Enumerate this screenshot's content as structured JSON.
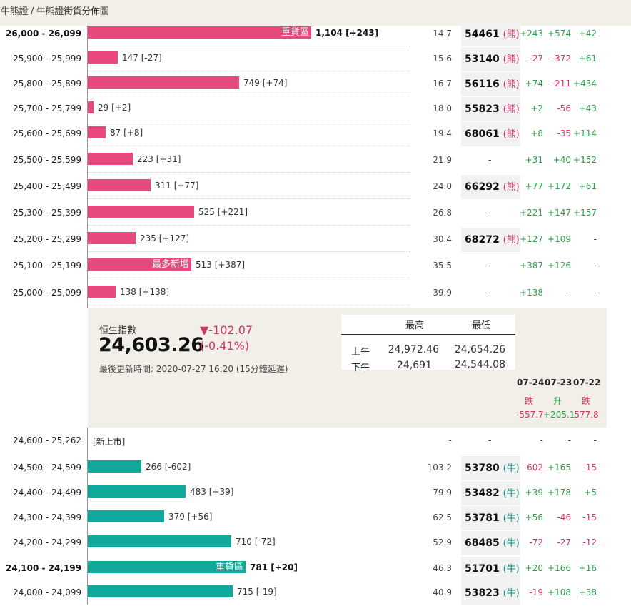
{
  "breadcrumb": "牛熊證 / 牛熊證街貨分佈圖",
  "colors": {
    "bear_bar": "#e94a7d",
    "bull_bar": "#12a99d",
    "up": "#2f9e4a",
    "down": "#d13268"
  },
  "bear_rows": [
    {
      "range": "26,000 - 26,099",
      "bold": true,
      "bar_value": 1104,
      "label": "1,104 [+243]",
      "bar_tag": "重貨區",
      "price": "14.7",
      "code": "54461",
      "code_tag": "(熊)",
      "chg": [
        "+243",
        "+574",
        "+42"
      ]
    },
    {
      "range": "25,900 - 25,999",
      "bold": false,
      "bar_value": 147,
      "label": "147 [-27]",
      "bar_tag": "",
      "price": "15.6",
      "code": "53140",
      "code_tag": "(熊)",
      "chg": [
        "-27",
        "-372",
        "+61"
      ]
    },
    {
      "range": "25,800 - 25,899",
      "bold": false,
      "bar_value": 749,
      "label": "749 [+74]",
      "bar_tag": "",
      "price": "16.7",
      "code": "56116",
      "code_tag": "(熊)",
      "chg": [
        "+74",
        "-211",
        "+434"
      ]
    },
    {
      "range": "25,700 - 25,799",
      "bold": false,
      "bar_value": 29,
      "label": "29 [+2]",
      "bar_tag": "",
      "price": "18.0",
      "code": "55823",
      "code_tag": "(熊)",
      "chg": [
        "+2",
        "-56",
        "+43"
      ]
    },
    {
      "range": "25,600 - 25,699",
      "bold": false,
      "bar_value": 87,
      "label": "87 [+8]",
      "bar_tag": "",
      "price": "19.4",
      "code": "68061",
      "code_tag": "(熊)",
      "chg": [
        "+8",
        "-35",
        "+114"
      ]
    },
    {
      "range": "25,500 - 25,599",
      "bold": false,
      "bar_value": 223,
      "label": "223 [+31]",
      "bar_tag": "",
      "price": "21.9",
      "code": "-",
      "code_tag": "",
      "chg": [
        "+31",
        "+40",
        "+152"
      ]
    },
    {
      "range": "25,400 - 25,499",
      "bold": false,
      "bar_value": 311,
      "label": "311 [+77]",
      "bar_tag": "",
      "price": "24.0",
      "code": "66292",
      "code_tag": "(熊)",
      "chg": [
        "+77",
        "+172",
        "+61"
      ]
    },
    {
      "range": "25,300 - 25,399",
      "bold": false,
      "bar_value": 525,
      "label": "525 [+221]",
      "bar_tag": "",
      "price": "26.8",
      "code": "-",
      "code_tag": "",
      "chg": [
        "+221",
        "+147",
        "+157"
      ]
    },
    {
      "range": "25,200 - 25,299",
      "bold": false,
      "bar_value": 235,
      "label": "235 [+127]",
      "bar_tag": "",
      "price": "30.4",
      "code": "68272",
      "code_tag": "(熊)",
      "chg": [
        "+127",
        "+109",
        "-"
      ]
    },
    {
      "range": "25,100 - 25,199",
      "bold": false,
      "bar_value": 513,
      "label": "513 [+387]",
      "bar_tag": "最多新增",
      "price": "35.5",
      "code": "-",
      "code_tag": "",
      "chg": [
        "+387",
        "+126",
        "-"
      ]
    },
    {
      "range": "25,000 - 25,099",
      "bold": false,
      "bar_value": 138,
      "label": "138 [+138]",
      "bar_tag": "",
      "price": "39.9",
      "code": "-",
      "code_tag": "",
      "chg": [
        "+138",
        "-",
        "-"
      ]
    }
  ],
  "index": {
    "name": "恒生指數",
    "value": "24,603.26",
    "change": "▼-102.07",
    "change_pct": "(-0.41%)",
    "updated": "最後更新時間: 2020-07-27 16:20 (15分鐘延遲)",
    "high_header": "最高",
    "low_header": "最低",
    "am_label": "上午",
    "pm_label": "下午",
    "am_high": "24,972.46",
    "am_low": "24,654.26",
    "pm_high": "24,691",
    "pm_low": "24,544.08"
  },
  "history": {
    "dates": [
      "07-24",
      "07-23",
      "07-22"
    ],
    "directions": [
      "跌",
      "升",
      "跌"
    ],
    "changes": [
      "-557.7",
      "+205.1",
      "-577.8"
    ]
  },
  "new_listing_row": {
    "range": "24,600 - 25,262",
    "label": "[新上市]",
    "price": "-",
    "code": "-",
    "chg": [
      "-",
      "-",
      "-"
    ]
  },
  "bull_rows": [
    {
      "range": "24,500 - 24,599",
      "bold": false,
      "bar_value": 266,
      "label": "266 [-602]",
      "bar_tag": "",
      "price": "103.2",
      "code": "53780",
      "code_tag": "(牛)",
      "chg": [
        "-602",
        "+165",
        "-15"
      ]
    },
    {
      "range": "24,400 - 24,499",
      "bold": false,
      "bar_value": 483,
      "label": "483 [+39]",
      "bar_tag": "",
      "price": "79.9",
      "code": "53482",
      "code_tag": "(牛)",
      "chg": [
        "+39",
        "+178",
        "+5"
      ]
    },
    {
      "range": "24,300 - 24,399",
      "bold": false,
      "bar_value": 379,
      "label": "379 [+56]",
      "bar_tag": "",
      "price": "62.5",
      "code": "53781",
      "code_tag": "(牛)",
      "chg": [
        "+56",
        "-46",
        "-15"
      ]
    },
    {
      "range": "24,200 - 24,299",
      "bold": false,
      "bar_value": 710,
      "label": "710 [-72]",
      "bar_tag": "",
      "price": "52.9",
      "code": "68485",
      "code_tag": "(牛)",
      "chg": [
        "-72",
        "-27",
        "-12"
      ]
    },
    {
      "range": "24,100 - 24,199",
      "bold": true,
      "bar_value": 781,
      "label": "781 [+20]",
      "bar_tag": "重貨區",
      "price": "46.3",
      "code": "51701",
      "code_tag": "(牛)",
      "chg": [
        "+20",
        "+166",
        "+16"
      ]
    },
    {
      "range": "24,000 - 24,099",
      "bold": false,
      "bar_value": 715,
      "label": "715 [-19]",
      "bar_tag": "",
      "price": "40.9",
      "code": "53823",
      "code_tag": "(牛)",
      "chg": [
        "-19",
        "+108",
        "+38"
      ]
    }
  ]
}
